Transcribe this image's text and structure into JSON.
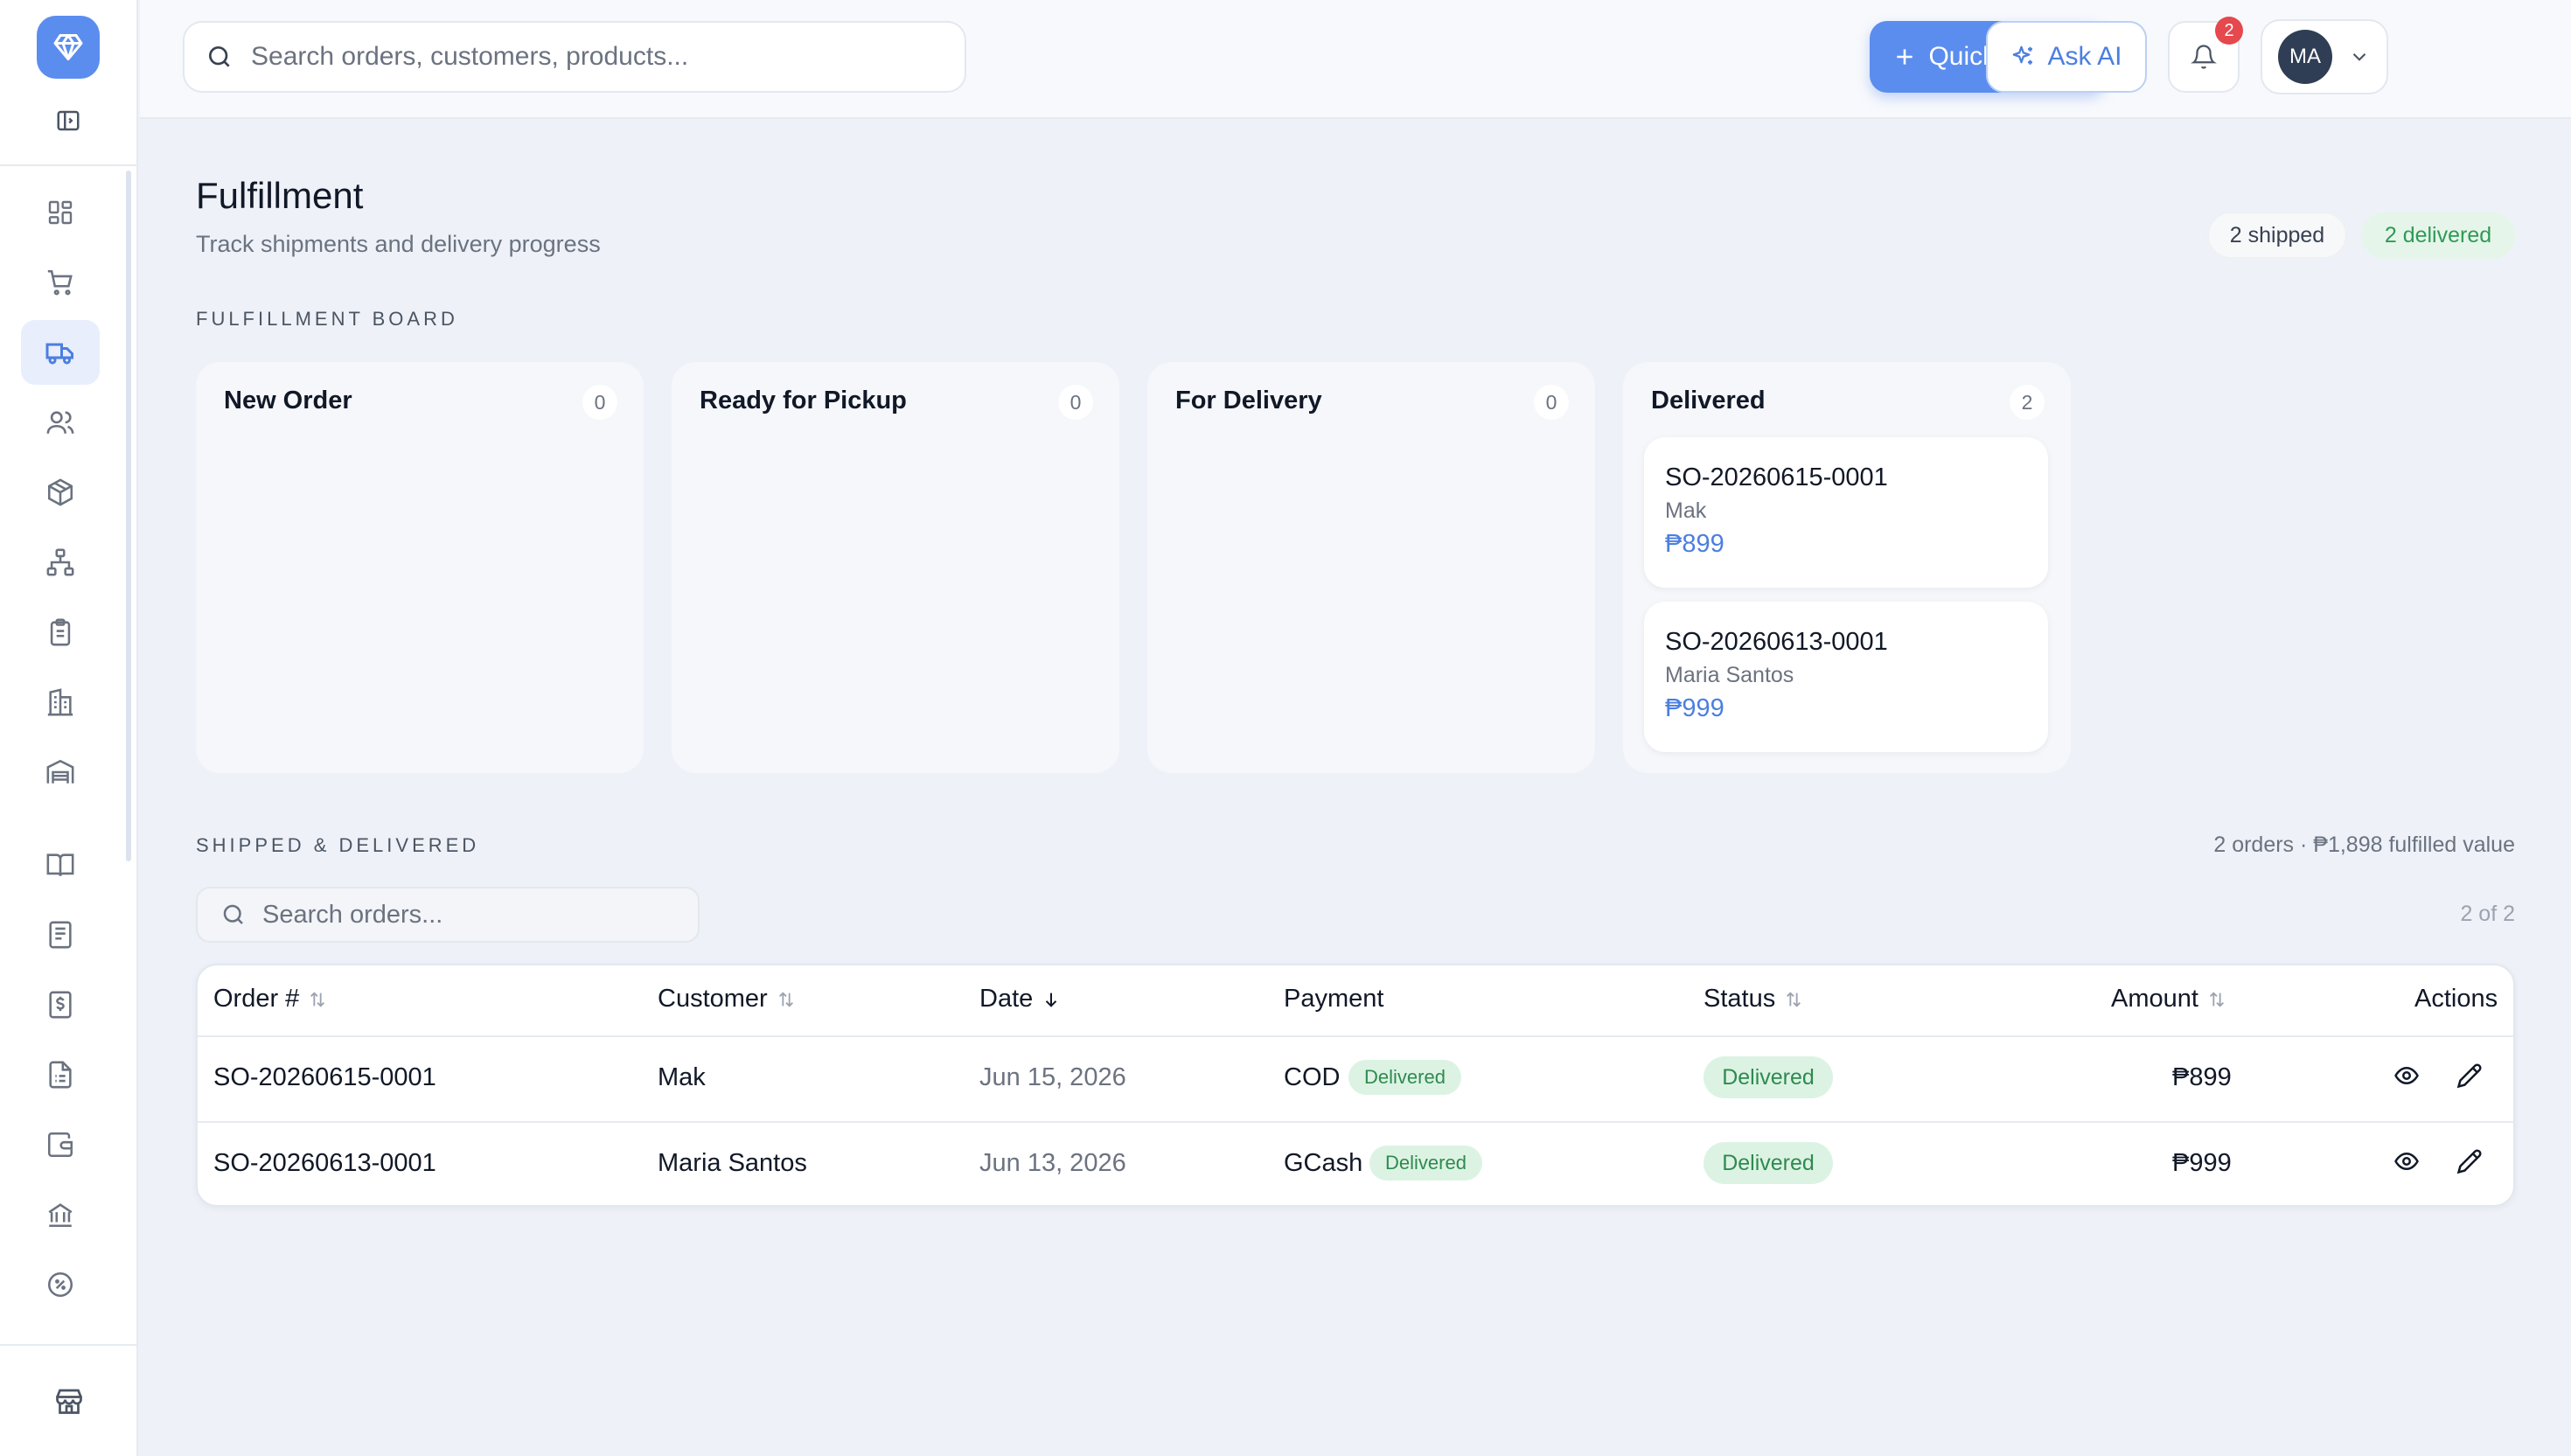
{
  "header": {
    "search_placeholder": "Search orders, customers, products...",
    "quick_create": "Quick Create",
    "ask_ai": "Ask AI",
    "notification_count": "2",
    "user_initials": "MA"
  },
  "sidebar": {
    "items": [
      {
        "icon": "dashboard-icon"
      },
      {
        "icon": "cart-icon"
      },
      {
        "icon": "truck-icon",
        "active": true
      },
      {
        "icon": "users-icon"
      },
      {
        "icon": "package-icon"
      },
      {
        "icon": "org-chart-icon"
      },
      {
        "icon": "clipboard-icon"
      },
      {
        "icon": "building-icon"
      },
      {
        "icon": "warehouse-icon"
      },
      {
        "icon": "book-icon"
      },
      {
        "icon": "ledger-icon"
      },
      {
        "icon": "dollar-doc-icon"
      },
      {
        "icon": "invoice-icon"
      },
      {
        "icon": "wallet-icon"
      },
      {
        "icon": "bank-icon"
      },
      {
        "icon": "percent-badge-icon"
      },
      {
        "icon": "store-icon"
      }
    ]
  },
  "page": {
    "title": "Fulfillment",
    "subtitle": "Track shipments and delivery progress",
    "shipped_pill": "2 shipped",
    "delivered_pill": "2 delivered"
  },
  "board": {
    "label": "FULFILLMENT BOARD",
    "columns": [
      {
        "title": "New Order",
        "count": "0",
        "cards": []
      },
      {
        "title": "Ready for Pickup",
        "count": "0",
        "cards": []
      },
      {
        "title": "For Delivery",
        "count": "0",
        "cards": []
      },
      {
        "title": "Delivered",
        "count": "2",
        "cards": [
          {
            "number": "SO-20260615-0001",
            "customer": "Mak",
            "amount": "₱899"
          },
          {
            "number": "SO-20260613-0001",
            "customer": "Maria Santos",
            "amount": "₱999"
          }
        ]
      }
    ]
  },
  "shipped": {
    "label": "SHIPPED & DELIVERED",
    "summary": "2 orders · ₱1,898 fulfilled value",
    "search_placeholder": "Search orders...",
    "pager": "2 of 2",
    "columns": {
      "order": "Order #",
      "customer": "Customer",
      "date": "Date",
      "payment": "Payment",
      "status": "Status",
      "amount": "Amount",
      "actions": "Actions"
    },
    "rows": [
      {
        "order": "SO-20260615-0001",
        "customer": "Mak",
        "date": "Jun 15, 2026",
        "payment": "COD",
        "payment_status": "Delivered",
        "status": "Delivered",
        "amount": "₱899"
      },
      {
        "order": "SO-20260613-0001",
        "customer": "Maria Santos",
        "date": "Jun 13, 2026",
        "payment": "GCash",
        "payment_status": "Delivered",
        "status": "Delivered",
        "amount": "₱999"
      }
    ]
  },
  "colors": {
    "accent": "#5b8def",
    "success_bg": "#dcf3e4",
    "success_text": "#2f8a4f",
    "badge_red": "#e5484d"
  }
}
